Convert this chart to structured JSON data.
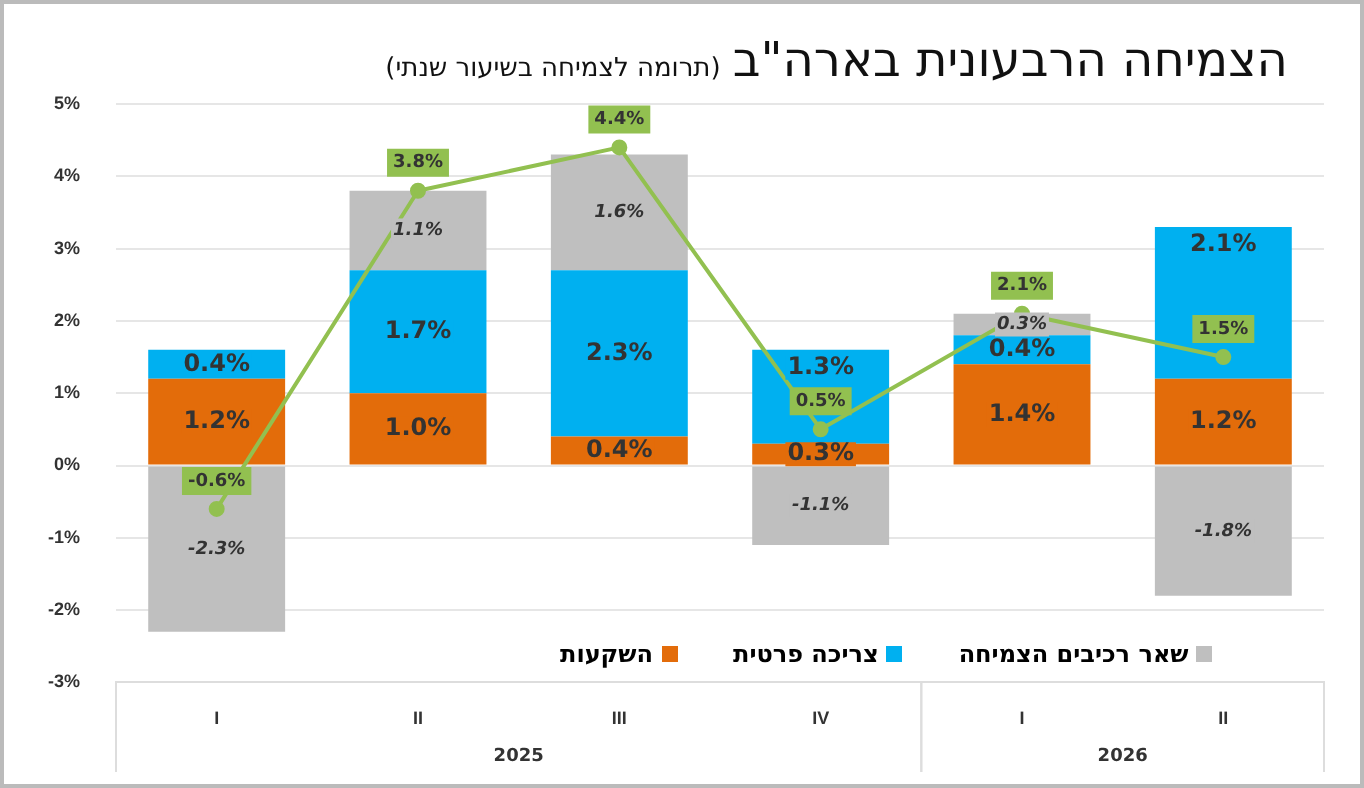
{
  "chart_data": {
    "type": "bar",
    "title": "הצמיחה הרבעונית בארה\"ב",
    "subtitle": "(תרומה לצמיחה בשיעור שנתי)",
    "categories": [
      "I",
      "II",
      "III",
      "IV",
      "I",
      "II"
    ],
    "annotations": [
      "2025",
      "2026"
    ],
    "stacked": true,
    "series": [
      {
        "name": "השקעות",
        "color": "#e36c0a",
        "values": [
          1.2,
          1.0,
          0.4,
          0.3,
          1.4,
          1.2
        ],
        "value_labels": [
          "1.2%",
          "1.0%",
          "0.4%",
          "0.3%",
          "1.4%",
          "1.2%"
        ]
      },
      {
        "name": "צריכה פרטית",
        "color": "#00b0f0",
        "values": [
          0.4,
          1.7,
          2.3,
          1.3,
          0.4,
          2.1
        ],
        "value_labels": [
          "0.4%",
          "1.7%",
          "2.3%",
          "1.3%",
          "0.4%",
          "2.1%"
        ]
      },
      {
        "name": "שאר רכיבים הצמיחה",
        "color": "#bfbfbf",
        "values": [
          -2.3,
          1.1,
          1.6,
          -1.1,
          0.3,
          -1.8
        ],
        "value_labels": [
          "-2.3%",
          "1.1%",
          "1.6%",
          "-1.1%",
          "0.3%",
          "-1.8%"
        ]
      },
      {
        "type": "line",
        "color": "#92c050",
        "values": [
          -0.6,
          3.8,
          4.4,
          0.5,
          2.1,
          1.5
        ],
        "value_labels": [
          "-0.6%",
          "3.8%",
          "4.4%",
          "0.5%",
          "2.1%",
          "1.5%"
        ],
        "marker": "circle"
      }
    ],
    "ylim": [
      -3,
      5
    ],
    "yticks": [
      {
        "value": -3,
        "label": "-3%"
      },
      {
        "value": -2,
        "label": "-2%"
      },
      {
        "value": -1,
        "label": "-1%"
      },
      {
        "value": 0,
        "label": "0%"
      },
      {
        "value": 1,
        "label": "1%"
      },
      {
        "value": 2,
        "label": "2%"
      },
      {
        "value": 3,
        "label": "3%"
      },
      {
        "value": 4,
        "label": "4%"
      },
      {
        "value": 5,
        "label": "5%"
      }
    ],
    "grid": "y",
    "legend": "bottom"
  }
}
